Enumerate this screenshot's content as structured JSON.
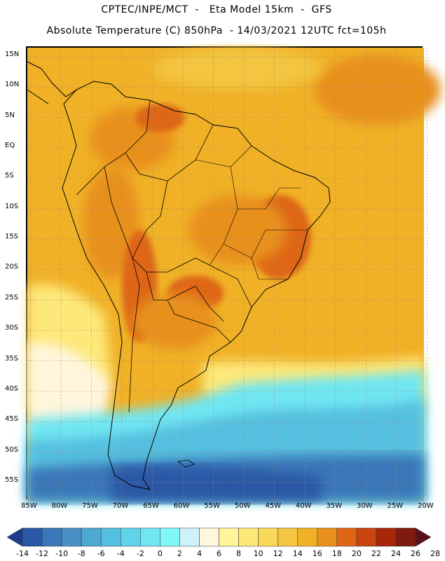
{
  "header": {
    "line1": "CPTEC/INPE/MCT  -   Eta Model 15km  -  GFS",
    "line2": "Absolute Temperature (C) 850hPa  - 14/03/2021 12UTC fct=105h"
  },
  "map": {
    "lat_labels": [
      "15N",
      "10N",
      "5N",
      "EQ",
      "5S",
      "10S",
      "15S",
      "20S",
      "25S",
      "30S",
      "35S",
      "40S",
      "45S",
      "50S",
      "55S"
    ],
    "lon_labels": [
      "85W",
      "80W",
      "75W",
      "70W",
      "65W",
      "60W",
      "55W",
      "50W",
      "45W",
      "40W",
      "35W",
      "30W",
      "25W",
      "20W"
    ],
    "lat_range": [
      -58,
      16.5
    ],
    "lon_range": [
      -85.5,
      -20.5
    ],
    "grid": true
  },
  "colorbar": {
    "labels": [
      "-14",
      "-12",
      "-10",
      "-8",
      "-6",
      "-4",
      "-2",
      "0",
      "2",
      "4",
      "6",
      "8",
      "10",
      "12",
      "14",
      "16",
      "18",
      "20",
      "22",
      "24",
      "26",
      "28"
    ],
    "colors": [
      "#1f3b8c",
      "#2a58a6",
      "#3a77b8",
      "#4a90c4",
      "#4fa8d2",
      "#54bfdf",
      "#5fd3ea",
      "#6fe6f2",
      "#7ff7f7",
      "#cdf2f9",
      "#fff6dc",
      "#fff59a",
      "#fde87a",
      "#f9d95a",
      "#f3c540",
      "#f0b127",
      "#e8901c",
      "#de6614",
      "#c9440e",
      "#a6270a",
      "#7f1a0e",
      "#5d0f17"
    ]
  }
}
